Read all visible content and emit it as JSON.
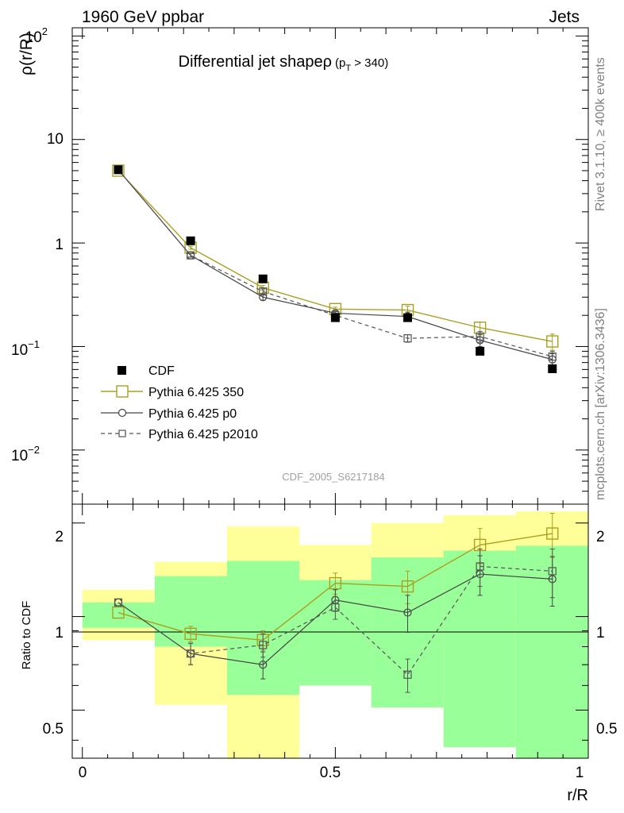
{
  "header": {
    "energy": "1960 GeV ppbar",
    "category": "Jets"
  },
  "side_labels": {
    "rivet": "Rivet 3.1.10, ≥ 400k events",
    "source": "mcplots.cern.ch [arXiv:1306.3436]"
  },
  "watermark": "CDF_2005_S6217184",
  "colors": {
    "pythia350": "#a8a022",
    "p0": "#444444",
    "p2010": "#555555",
    "yellow": "#ffff99",
    "green": "#99ff99"
  },
  "chart_data": [
    {
      "type": "scatter",
      "title": "Differential jet shapeρ",
      "title_sub": "(p",
      "title_sub_index": "T",
      "title_sub_tail": " > 340)",
      "ylabel": "ρ(r/R)",
      "yscale": "log",
      "ylim": [
        0.003,
        120
      ],
      "xlim": [
        -0.02,
        1.0
      ],
      "ytick_labels": {
        "major_main": [
          "1",
          "10"
        ],
        "base": "10",
        "exp_top": "2",
        "exp_mid": "−1",
        "exp_low": "−2"
      },
      "legend_position": "bottom-left",
      "x": [
        0.071,
        0.214,
        0.357,
        0.5,
        0.643,
        0.786,
        0.929
      ],
      "series": [
        {
          "name": "CDF",
          "marker": "filled-square",
          "values": [
            5.1,
            1.05,
            0.45,
            0.19,
            0.19,
            0.09,
            0.061
          ]
        },
        {
          "name": "Pythia 6.425 350",
          "marker": "open-square",
          "line": "solid",
          "values": [
            5.0,
            0.9,
            0.37,
            0.23,
            0.225,
            0.152,
            0.112
          ],
          "errors": [
            0,
            0.03,
            0.02,
            0.01,
            0.02,
            0.02,
            0.02
          ]
        },
        {
          "name": "Pythia 6.425 p0",
          "marker": "open-circle",
          "line": "solid",
          "values": [
            5.1,
            0.76,
            0.3,
            0.21,
            0.195,
            0.115,
            0.075
          ],
          "errors": [
            0,
            0.03,
            0.02,
            0.01,
            0.02,
            0.015,
            0.01
          ]
        },
        {
          "name": "Pythia 6.425 p2010",
          "marker": "small-open-square",
          "line": "dashed",
          "values": [
            5.1,
            0.76,
            0.34,
            0.2,
            0.12,
            0.125,
            0.08
          ],
          "errors": [
            0,
            0.03,
            0.02,
            0.01,
            0.01,
            0.015,
            0.01
          ]
        }
      ]
    },
    {
      "type": "scatter",
      "ylabel": "Ratio to CDF",
      "xlabel": "r/R",
      "ylim": [
        0.35,
        2.3
      ],
      "xlim": [
        -0.02,
        1.0
      ],
      "xtick_labels": [
        "0",
        "0.5",
        "1"
      ],
      "ytick_labels": [
        "0.5",
        "1",
        "2"
      ],
      "bin_edges": [
        0.0,
        0.143,
        0.286,
        0.429,
        0.571,
        0.714,
        0.857,
        1.0
      ],
      "band_yellow": [
        [
          0.84,
          1.22
        ],
        [
          0.52,
          1.5
        ],
        [
          0.3,
          1.95
        ],
        [
          0.72,
          1.7
        ],
        [
          0.51,
          2.0
        ],
        [
          0.38,
          2.12
        ],
        [
          0.35,
          2.18
        ]
      ],
      "band_green": [
        [
          0.92,
          1.11
        ],
        [
          0.8,
          1.35
        ],
        [
          0.56,
          1.51
        ],
        [
          0.6,
          1.31
        ],
        [
          0.51,
          1.55
        ],
        [
          0.38,
          1.63
        ],
        [
          0.35,
          1.69
        ]
      ],
      "x": [
        0.071,
        0.214,
        0.357,
        0.5,
        0.643,
        0.786,
        0.929
      ],
      "series": [
        {
          "name": "Pythia 6.425 350",
          "values": [
            1.03,
            0.88,
            0.84,
            1.28,
            1.25,
            1.7,
            1.85
          ],
          "errors": [
            0,
            0.05,
            0.06,
            0.1,
            0.15,
            0.22,
            0.3
          ]
        },
        {
          "name": "Pythia 6.425 p0",
          "values": [
            1.11,
            0.76,
            0.7,
            1.13,
            1.03,
            1.37,
            1.32
          ],
          "errors": [
            0,
            0.06,
            0.07,
            0.09,
            0.14,
            0.2,
            0.24
          ]
        },
        {
          "name": "Pythia 6.425 p2010",
          "values": [
            1.11,
            0.76,
            0.81,
            1.07,
            0.65,
            1.45,
            1.4
          ],
          "errors": [
            0,
            0.06,
            0.07,
            0.09,
            0.08,
            0.2,
            0.25
          ]
        }
      ]
    }
  ]
}
